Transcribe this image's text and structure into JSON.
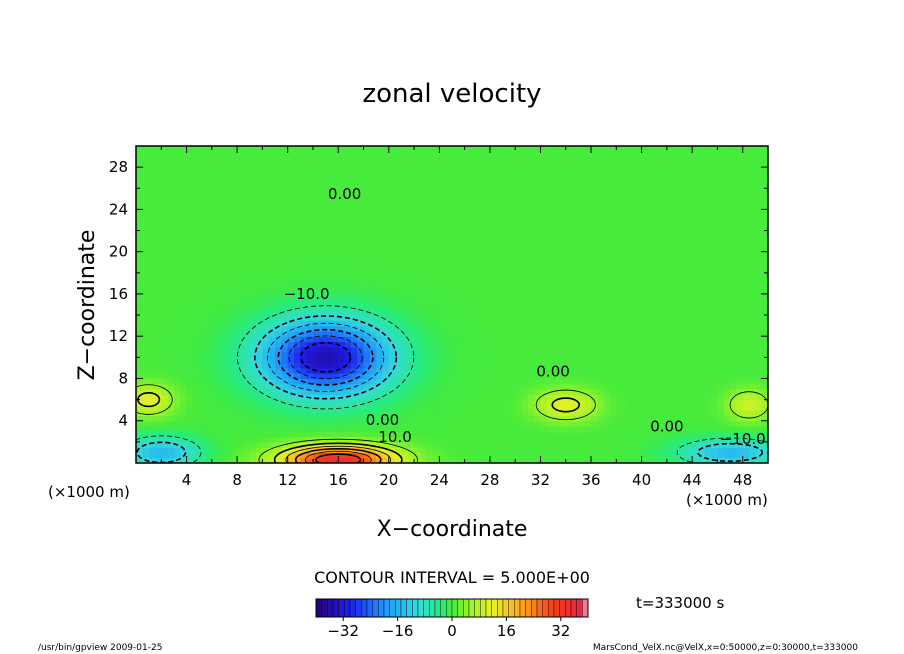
{
  "chart_data": {
    "type": "heatmap",
    "title": "zonal velocity",
    "xlabel": "X−coordinate",
    "ylabel": "Z−coordinate",
    "x_units_left": "(×1000 m)",
    "x_units_right": "(×1000 m)",
    "xlim": [
      0,
      50
    ],
    "ylim": [
      0,
      30
    ],
    "x_ticks": [
      4,
      8,
      12,
      16,
      20,
      24,
      28,
      32,
      36,
      40,
      44,
      48
    ],
    "y_ticks": [
      4,
      8,
      12,
      16,
      20,
      24,
      28
    ],
    "contour_labels": [
      {
        "text": "0.00",
        "x": 16.5,
        "z": 25.0
      },
      {
        "text": "−10.0",
        "x": 13.5,
        "z": 15.5
      },
      {
        "text": "0.00",
        "x": 33.0,
        "z": 8.2
      },
      {
        "text": "0.00",
        "x": 19.5,
        "z": 3.6
      },
      {
        "text": "10.0",
        "x": 20.5,
        "z": 2.0
      },
      {
        "text": "0.00",
        "x": 42.0,
        "z": 3.0
      },
      {
        "text": "−10.0",
        "x": 48.0,
        "z": 1.8
      }
    ],
    "features": [
      {
        "kind": "jet",
        "x": 15.0,
        "z": 10.0,
        "sx": 5.0,
        "sz": 3.5,
        "peak": -35
      },
      {
        "kind": "jet",
        "x": 16.0,
        "z": 0.3,
        "sx": 4.5,
        "sz": 1.4,
        "peak": 35
      },
      {
        "kind": "jet",
        "x": 34.0,
        "z": 5.5,
        "sx": 2.5,
        "sz": 1.5,
        "peak": 12
      },
      {
        "kind": "jet",
        "x": 1.0,
        "z": 6.0,
        "sx": 2.0,
        "sz": 1.5,
        "peak": 12
      },
      {
        "kind": "jet",
        "x": 48.5,
        "z": 5.5,
        "sx": 1.8,
        "sz": 1.5,
        "peak": 10
      },
      {
        "kind": "jet",
        "x": 2.0,
        "z": 1.0,
        "sx": 3.0,
        "sz": 1.5,
        "peak": -15
      },
      {
        "kind": "jet",
        "x": 47.0,
        "z": 1.0,
        "sx": 4.0,
        "sz": 1.3,
        "peak": -15
      }
    ],
    "contour_interval_text": "CONTOUR INTERVAL = 5.000E+00",
    "colorbar": {
      "min": -40,
      "max": 40,
      "tick_values": [
        -32,
        -16,
        0,
        16,
        32
      ],
      "tick_labels": [
        "−32",
        "−16",
        "0",
        "16",
        "32"
      ]
    },
    "time_label": "t=333000 s",
    "footer_left": "/usr/bin/gpview   2009-01-25",
    "footer_right": "MarsCond_VelX.nc@VelX,x=0:50000,z=0:30000,t=333000"
  }
}
